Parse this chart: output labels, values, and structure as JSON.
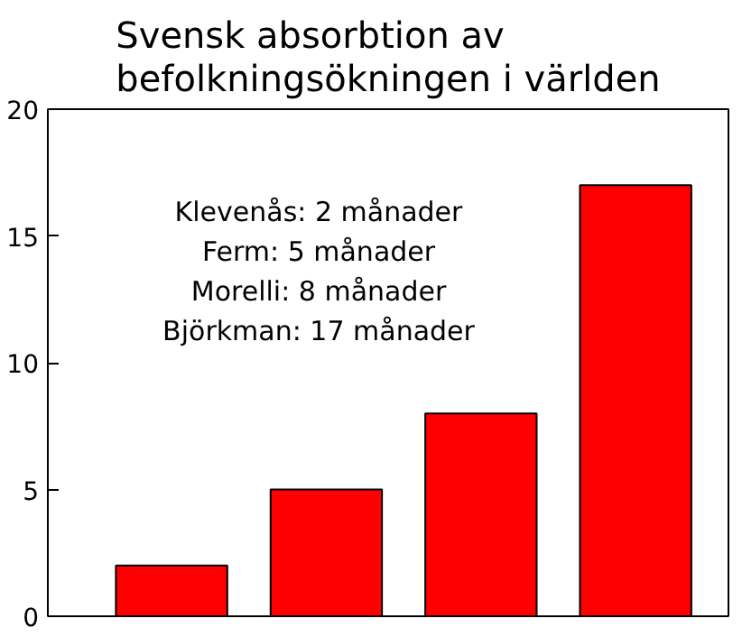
{
  "chart_data": {
    "type": "bar",
    "title": "Svensk absorbtion av\nbefolkningsökningen i världen",
    "categories": [
      null,
      null,
      null,
      null
    ],
    "values": [
      2,
      5,
      8,
      17
    ],
    "color": "#ff0000",
    "ylim": [
      0,
      20
    ],
    "yticks": [
      0,
      5,
      10,
      15,
      20
    ],
    "grid": false,
    "tick_labels": "y",
    "annotations": [
      "Klevenås: 2 månader",
      "Ferm: 5 månader",
      "Morelli: 8 månader",
      "Björkman: 17 månader"
    ]
  }
}
